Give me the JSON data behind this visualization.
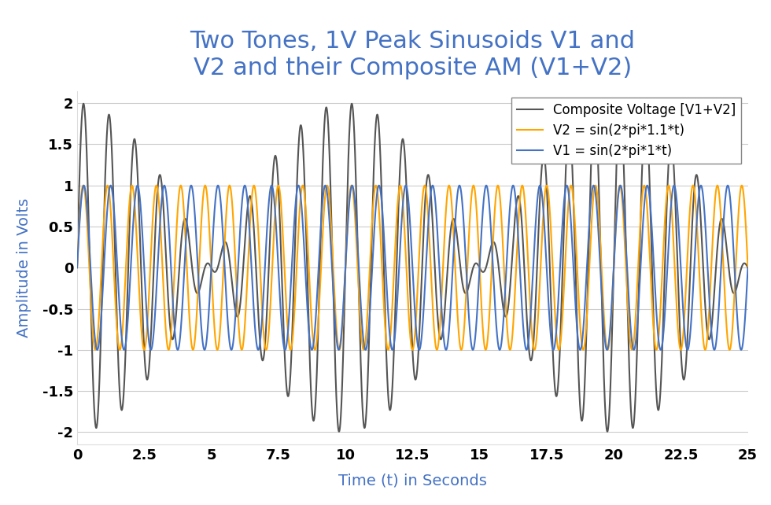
{
  "title_line1": "Two Tones, 1V Peak Sinusoids V1 and",
  "title_line2": "V2 and their Composite AM (V1+V2)",
  "xlabel": "Time (t) in Seconds",
  "ylabel": "Amplitude in Volts",
  "xlim": [
    0,
    25
  ],
  "ylim": [
    -2.15,
    2.15
  ],
  "yticks": [
    -2,
    -1.5,
    -1,
    -0.5,
    0,
    0.5,
    1,
    1.5,
    2
  ],
  "xticks": [
    0,
    2.5,
    5,
    7.5,
    10,
    12.5,
    15,
    17.5,
    20,
    22.5,
    25
  ],
  "f1": 1.0,
  "f2": 1.1,
  "t_start": 0,
  "t_end": 25,
  "n_points": 10000,
  "color_v1": "#4472C4",
  "color_v2": "#FFA500",
  "color_composite": "#555555",
  "lw_v1": 1.5,
  "lw_v2": 1.5,
  "lw_composite": 1.5,
  "legend_v1": "V1 = sin(2*pi*1*t)",
  "legend_v2": "V2 = sin(2*pi*1.1*t)",
  "legend_composite": "Composite Voltage [V1+V2]",
  "title_color": "#4472C4",
  "axis_label_color": "#4472C4",
  "tick_color": "#000000",
  "title_fontsize": 22,
  "label_fontsize": 14,
  "tick_fontsize": 13,
  "legend_fontsize": 12,
  "background_color": "#FFFFFF",
  "grid_color": "#CCCCCC",
  "grid_alpha": 1.0,
  "fig_width": 9.8,
  "fig_height": 6.42
}
